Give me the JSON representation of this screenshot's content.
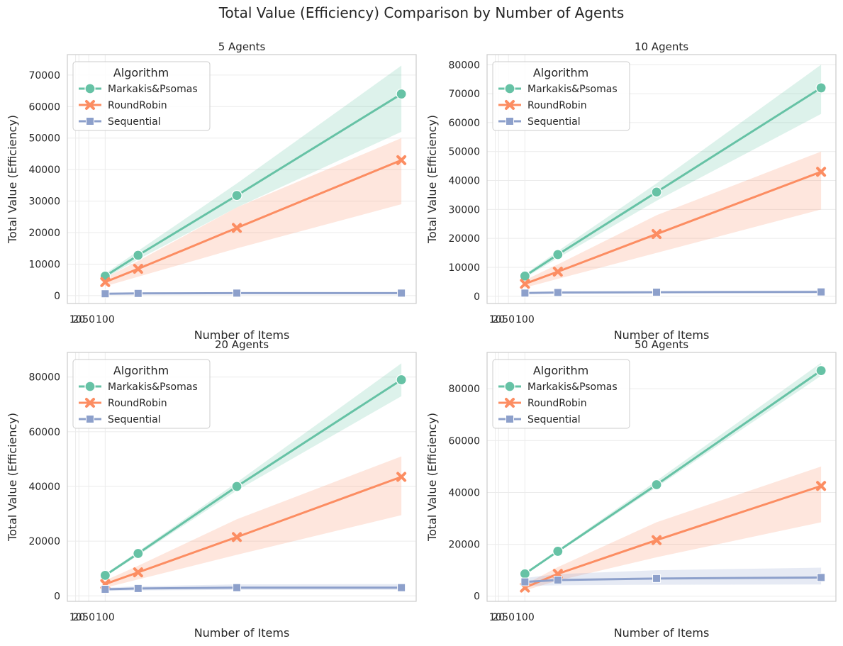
{
  "figure": {
    "suptitle": "Total Value (Efficiency) Comparison by Number of Agents"
  },
  "colors": {
    "Markakis&Psomas": "#66c2a5",
    "RoundRobin": "#fc8d62",
    "Sequential": "#8da0cb",
    "grid": "#ebebeb",
    "spine": "#cccccc",
    "text": "#262626"
  },
  "chart_data": [
    {
      "type": "line",
      "title": "5 Agents",
      "xlabel": "Number of Items",
      "ylabel": "Total Value (Efficiency)",
      "x": [
        100,
        200,
        500,
        1000
      ],
      "xticks": [
        10,
        20,
        50,
        100
      ],
      "xlim": [
        -15,
        1045
      ],
      "ylim": [
        -2500,
        76500
      ],
      "yticks": [
        0,
        10000,
        20000,
        30000,
        40000,
        50000,
        60000,
        70000
      ],
      "grid": true,
      "legend": {
        "title": "Algorithm",
        "placement": "upper-left"
      },
      "series": [
        {
          "name": "Markakis&Psomas",
          "marker": "circle",
          "values": [
            6200,
            12800,
            31800,
            64000
          ],
          "ci_low": [
            5500,
            11500,
            28000,
            52000
          ],
          "ci_high": [
            7000,
            14200,
            35600,
            73000
          ]
        },
        {
          "name": "RoundRobin",
          "marker": "x",
          "values": [
            4300,
            8500,
            21500,
            43000
          ],
          "ci_low": [
            3000,
            6000,
            15000,
            29000
          ],
          "ci_high": [
            5600,
            11000,
            28000,
            50000
          ]
        },
        {
          "name": "Sequential",
          "marker": "square",
          "values": [
            600,
            700,
            800,
            800
          ],
          "ci_low": [
            400,
            500,
            600,
            600
          ],
          "ci_high": [
            800,
            900,
            1000,
            1000
          ]
        }
      ]
    },
    {
      "type": "line",
      "title": "10 Agents",
      "xlabel": "Number of Items",
      "ylabel": "Total Value (Efficiency)",
      "x": [
        100,
        200,
        500,
        1000
      ],
      "xticks": [
        10,
        20,
        50,
        100
      ],
      "xlim": [
        -15,
        1045
      ],
      "ylim": [
        -2500,
        83500
      ],
      "yticks": [
        0,
        10000,
        20000,
        30000,
        40000,
        50000,
        60000,
        70000,
        80000
      ],
      "grid": true,
      "legend": {
        "title": "Algorithm",
        "placement": "upper-left"
      },
      "series": [
        {
          "name": "Markakis&Psomas",
          "marker": "circle",
          "values": [
            7000,
            14400,
            36000,
            72000
          ],
          "ci_low": [
            6400,
            13200,
            33000,
            63000
          ],
          "ci_high": [
            7600,
            15600,
            39000,
            80000
          ]
        },
        {
          "name": "RoundRobin",
          "marker": "x",
          "values": [
            4300,
            8500,
            21500,
            43000
          ],
          "ci_low": [
            3000,
            6000,
            15000,
            30000
          ],
          "ci_high": [
            5600,
            11000,
            28000,
            50000
          ]
        },
        {
          "name": "Sequential",
          "marker": "square",
          "values": [
            1100,
            1300,
            1400,
            1500
          ],
          "ci_low": [
            900,
            1000,
            1100,
            1100
          ],
          "ci_high": [
            1300,
            1600,
            1800,
            2000
          ]
        }
      ]
    },
    {
      "type": "line",
      "title": "20 Agents",
      "xlabel": "Number of Items",
      "ylabel": "Total Value (Efficiency)",
      "x": [
        100,
        200,
        500,
        1000
      ],
      "xticks": [
        10,
        20,
        50,
        100
      ],
      "xlim": [
        -15,
        1045
      ],
      "ylim": [
        -2000,
        89000
      ],
      "yticks": [
        0,
        20000,
        40000,
        60000,
        80000
      ],
      "grid": true,
      "legend": {
        "title": "Algorithm",
        "placement": "upper-left"
      },
      "series": [
        {
          "name": "Markakis&Psomas",
          "marker": "circle",
          "values": [
            7500,
            15500,
            40000,
            79000
          ],
          "ci_low": [
            7000,
            14800,
            38500,
            73000
          ],
          "ci_high": [
            8000,
            16200,
            41500,
            85000
          ]
        },
        {
          "name": "RoundRobin",
          "marker": "x",
          "values": [
            4300,
            8600,
            21500,
            43500
          ],
          "ci_low": [
            3000,
            6000,
            15000,
            29500
          ],
          "ci_high": [
            5600,
            11000,
            28000,
            51000
          ]
        },
        {
          "name": "Sequential",
          "marker": "square",
          "values": [
            2400,
            2700,
            3000,
            3000
          ],
          "ci_low": [
            1800,
            2000,
            2200,
            2200
          ],
          "ci_high": [
            3000,
            3500,
            4200,
            4300
          ]
        }
      ]
    },
    {
      "type": "line",
      "title": "50 Agents",
      "xlabel": "Number of Items",
      "ylabel": "Total Value (Efficiency)",
      "x": [
        100,
        200,
        500,
        1000
      ],
      "xticks": [
        10,
        20,
        50,
        100
      ],
      "xlim": [
        -15,
        1045
      ],
      "ylim": [
        -2000,
        94000
      ],
      "yticks": [
        0,
        20000,
        40000,
        60000,
        80000
      ],
      "grid": true,
      "legend": {
        "title": "Algorithm",
        "placement": "upper-left"
      },
      "series": [
        {
          "name": "Markakis&Psomas",
          "marker": "circle",
          "values": [
            8600,
            17300,
            43000,
            87000
          ],
          "ci_low": [
            8200,
            16800,
            42000,
            85000
          ],
          "ci_high": [
            9000,
            17800,
            44500,
            90000
          ]
        },
        {
          "name": "RoundRobin",
          "marker": "x",
          "values": [
            3300,
            8600,
            21600,
            42500
          ],
          "ci_low": [
            2200,
            6000,
            15000,
            28500
          ],
          "ci_high": [
            4500,
            11200,
            28500,
            50000
          ]
        },
        {
          "name": "Sequential",
          "marker": "square",
          "values": [
            5500,
            6200,
            6800,
            7200
          ],
          "ci_low": [
            4000,
            4200,
            4400,
            4500
          ],
          "ci_high": [
            7000,
            8500,
            10000,
            11000
          ]
        }
      ]
    }
  ]
}
